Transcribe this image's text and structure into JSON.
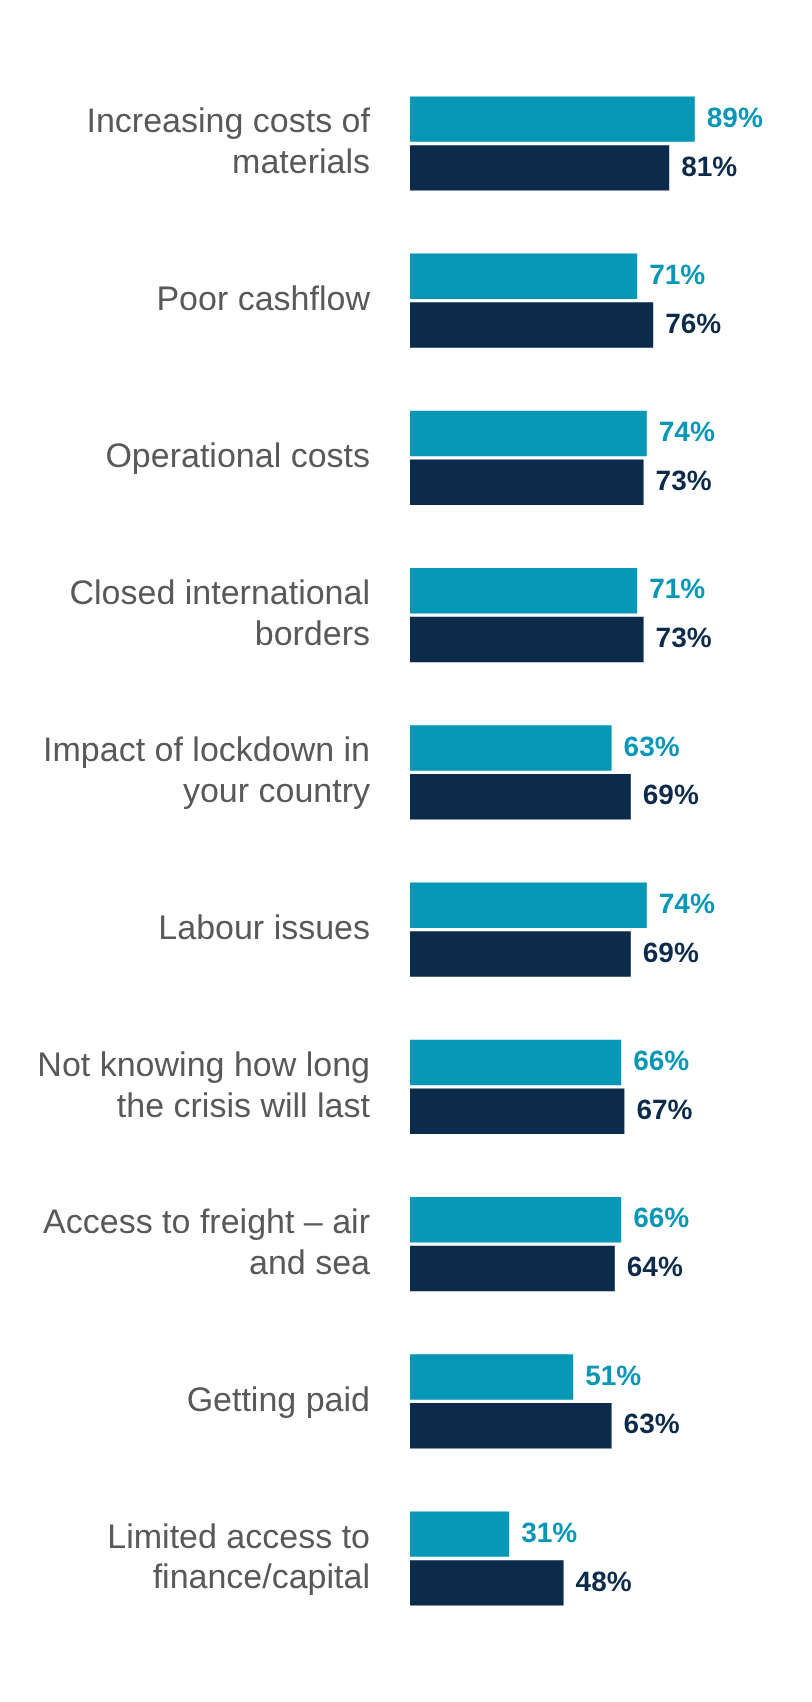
{
  "chart_data": {
    "type": "bar",
    "orientation": "horizontal",
    "categories": [
      "Increasing costs of materials",
      "Poor cashflow",
      "Operational costs",
      "Closed international borders",
      "Impact of lockdown in your country",
      "Labour issues",
      "Not knowing how long the crisis will last",
      "Access to freight – air and sea",
      "Getting paid",
      "Limited access to finance/capital"
    ],
    "series": [
      {
        "color": "#0797b6",
        "values": [
          89,
          71,
          74,
          71,
          63,
          74,
          66,
          66,
          51,
          31
        ],
        "value_labels": [
          "89%",
          "71%",
          "74%",
          "71%",
          "63%",
          "74%",
          "66%",
          "66%",
          "51%",
          "31%"
        ]
      },
      {
        "color": "#0c2b4b",
        "values": [
          81,
          76,
          73,
          73,
          69,
          69,
          67,
          64,
          63,
          48
        ],
        "value_labels": [
          "81%",
          "76%",
          "73%",
          "73%",
          "69%",
          "69%",
          "67%",
          "64%",
          "63%",
          "48%"
        ]
      }
    ],
    "tick_labels": "y"
  }
}
